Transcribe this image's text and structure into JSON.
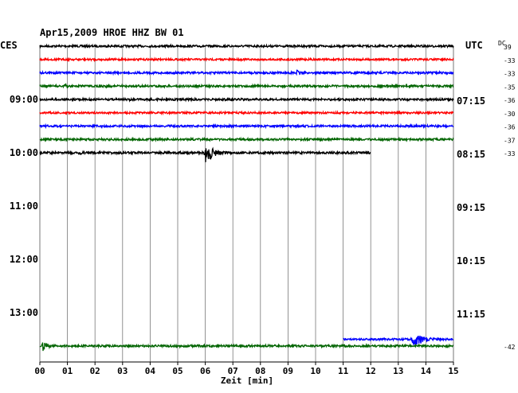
{
  "chart_data": {
    "type": "line",
    "title": "Apr15,2009   HROE HHZ BW 01",
    "left_label": "CES",
    "right_label": "UTC",
    "dc_label": "DC",
    "xlabel": "Zeit [min]",
    "x_ticks": [
      "00",
      "01",
      "02",
      "03",
      "04",
      "05",
      "06",
      "07",
      "08",
      "09",
      "10",
      "11",
      "12",
      "13",
      "14",
      "15"
    ],
    "xlim": [
      0,
      15
    ],
    "grid": true,
    "rows_per_hour": 4,
    "hour_labels": [
      {
        "row": 4,
        "ces": "09:00",
        "utc": "07:15"
      },
      {
        "row": 8,
        "ces": "10:00",
        "utc": "08:15"
      },
      {
        "row": 12,
        "ces": "11:00",
        "utc": "09:15"
      },
      {
        "row": 16,
        "ces": "12:00",
        "utc": "10:15"
      },
      {
        "row": 20,
        "ces": "13:00",
        "utc": "11:15"
      }
    ],
    "colors": {
      "black": "#000000",
      "red": "#ff0000",
      "blue": "#0000ff",
      "green": "#006400"
    },
    "traces": [
      {
        "row": 0,
        "color": "black",
        "x_start": 0,
        "x_end": 15,
        "dc": "39",
        "amp": 1.3
      },
      {
        "row": 1,
        "color": "red",
        "x_start": 0,
        "x_end": 15,
        "dc": "-33",
        "amp": 1.2
      },
      {
        "row": 2,
        "color": "blue",
        "x_start": 0,
        "x_end": 15,
        "dc": "-33",
        "amp": 1.3,
        "events": [
          {
            "at": 9.3,
            "width": 0.7,
            "amp": 4
          }
        ]
      },
      {
        "row": 3,
        "color": "green",
        "x_start": 0,
        "x_end": 15,
        "dc": "-35",
        "amp": 1.3,
        "events": [
          {
            "at": 0.9,
            "width": 0.6,
            "amp": 4
          },
          {
            "at": 2.4,
            "width": 0.4,
            "amp": 3
          }
        ]
      },
      {
        "row": 4,
        "color": "black",
        "x_start": 0,
        "x_end": 15,
        "dc": "-36",
        "amp": 1.3,
        "events": [
          {
            "at": 3.2,
            "width": 0.5,
            "amp": 3
          }
        ]
      },
      {
        "row": 5,
        "color": "red",
        "x_start": 0,
        "x_end": 15,
        "dc": "-30",
        "amp": 1.2
      },
      {
        "row": 6,
        "color": "blue",
        "x_start": 0,
        "x_end": 15,
        "dc": "-36",
        "amp": 1.3,
        "events": [
          {
            "at": 6.8,
            "width": 0.6,
            "amp": 3
          }
        ]
      },
      {
        "row": 7,
        "color": "green",
        "x_start": 0,
        "x_end": 15,
        "dc": "-37",
        "amp": 1.3
      },
      {
        "row": 8,
        "color": "black",
        "x_start": 0,
        "x_end": 12,
        "dc": "-33",
        "amp": 1.4,
        "events": [
          {
            "at": 1.4,
            "width": 0.7,
            "amp": 3
          },
          {
            "at": 6.0,
            "width": 0.9,
            "amp": 14
          }
        ]
      },
      {
        "row": 22,
        "color": "blue",
        "x_start": 11,
        "x_end": 15,
        "dc": "",
        "amp": 1.2,
        "events": [
          {
            "at": 13.5,
            "width": 1.1,
            "amp": 12
          }
        ]
      },
      {
        "row": 22.5,
        "color": "green",
        "x_start": 0,
        "x_end": 15,
        "dc": "-42",
        "amp": 1.3,
        "events": [
          {
            "at": 0.1,
            "width": 0.6,
            "amp": 8
          }
        ]
      }
    ]
  }
}
